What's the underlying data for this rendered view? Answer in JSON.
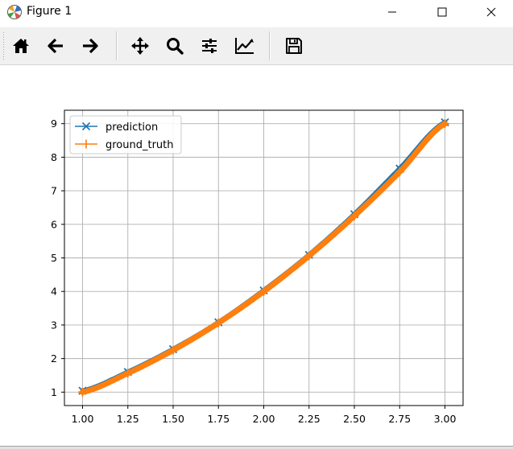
{
  "window": {
    "title": "Figure 1",
    "icon": "matplotlib-logo-icon",
    "controls": [
      "minimize-icon",
      "maximize-icon",
      "close-icon"
    ]
  },
  "toolbar": {
    "tools": [
      {
        "name": "home-icon"
      },
      {
        "name": "back-arrow-icon"
      },
      {
        "name": "forward-arrow-icon"
      },
      {
        "name": "pan-move-icon"
      },
      {
        "name": "zoom-magnifier-icon"
      },
      {
        "name": "configure-subplots-icon"
      },
      {
        "name": "edit-axis-curve-icon"
      },
      {
        "name": "save-floppy-icon"
      }
    ]
  },
  "chart_data": {
    "type": "line",
    "title": "",
    "xlabel": "",
    "ylabel": "",
    "xlim": [
      0.9,
      3.1
    ],
    "ylim": [
      0.6,
      9.4
    ],
    "xticks": [
      "1.00",
      "1.25",
      "1.50",
      "1.75",
      "2.00",
      "2.25",
      "2.50",
      "2.75",
      "3.00"
    ],
    "yticks": [
      "1",
      "2",
      "3",
      "4",
      "5",
      "6",
      "7",
      "8",
      "9"
    ],
    "grid": true,
    "legend": "upper-left",
    "x": [
      1.0,
      1.25,
      1.5,
      1.75,
      2.0,
      2.25,
      2.5,
      2.75,
      3.0
    ],
    "series": [
      {
        "name": "prediction",
        "marker": "x",
        "color": "#1f77b4",
        "values": [
          1.04,
          1.6,
          2.28,
          3.08,
          4.03,
          5.09,
          6.3,
          7.66,
          9.04
        ]
      },
      {
        "name": "ground_truth",
        "marker": "+",
        "color": "#ff7f0e",
        "values": [
          1.0,
          1.5625,
          2.25,
          3.0625,
          4.0,
          5.0625,
          6.25,
          7.5625,
          9.0
        ]
      }
    ]
  }
}
